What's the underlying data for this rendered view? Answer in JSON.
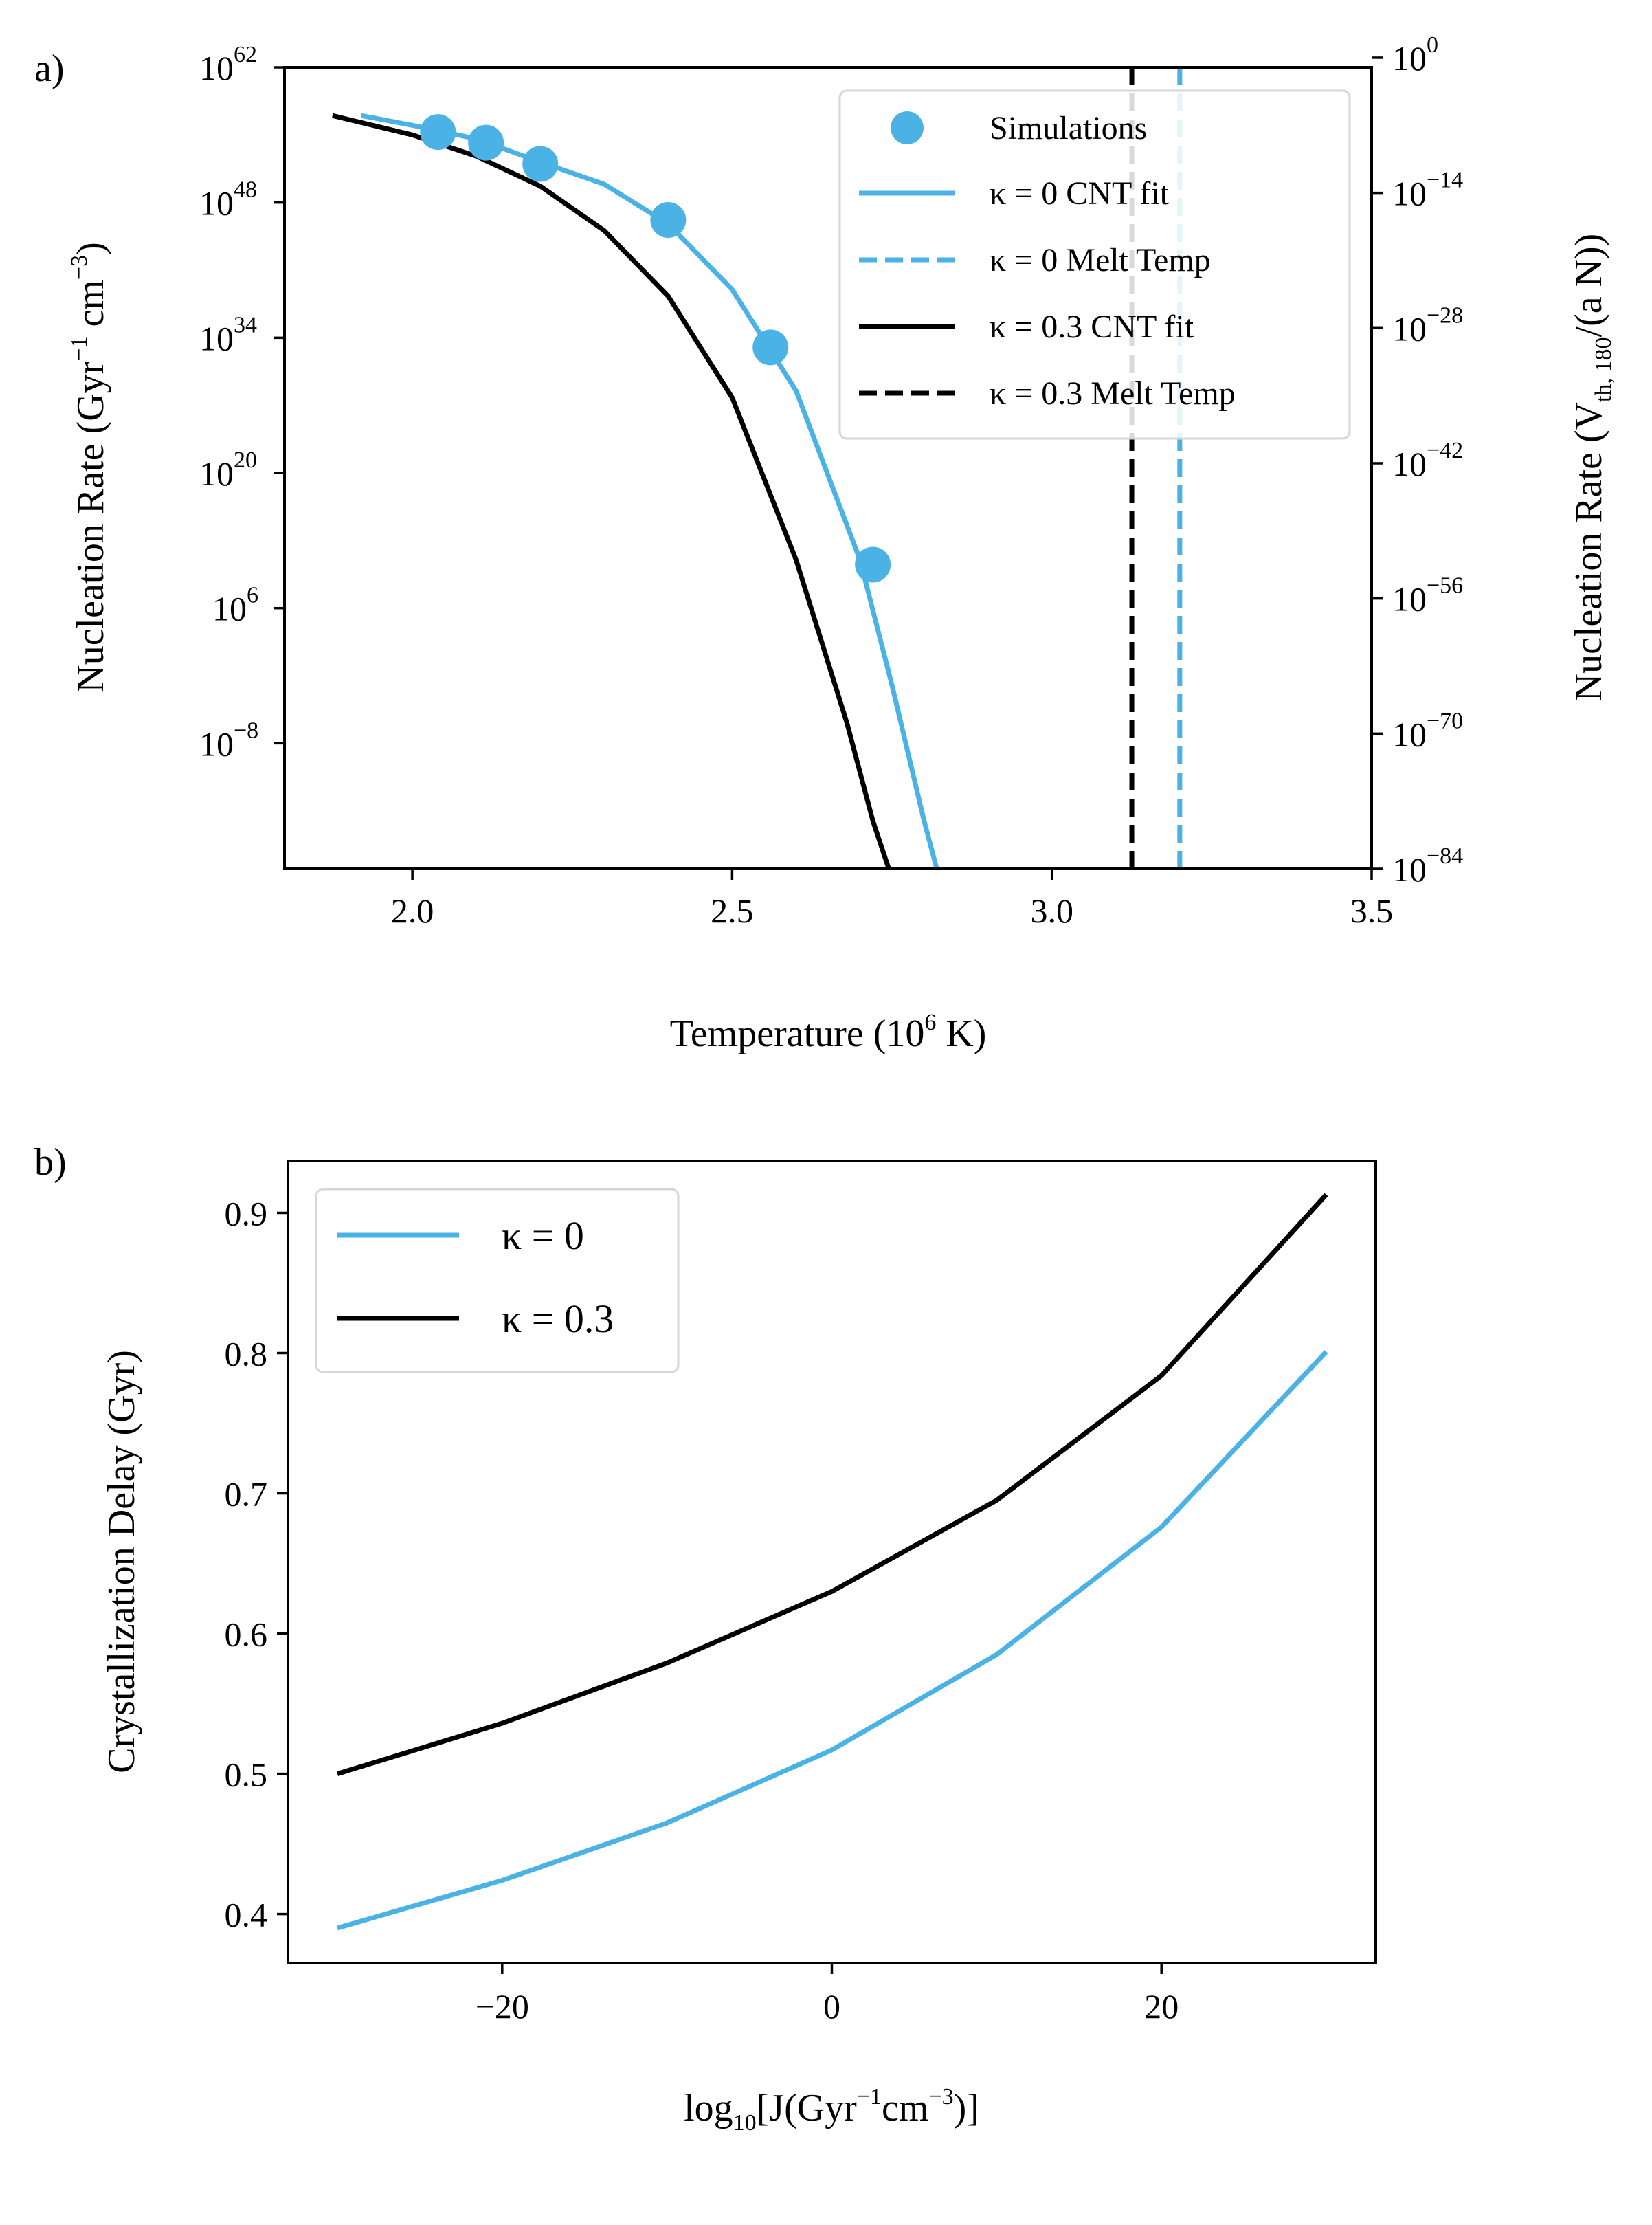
{
  "colors": {
    "kappa0": "#4bb2e5",
    "kappa03": "#000000"
  },
  "chart_data": [
    {
      "type": "line",
      "panel_label": "a)",
      "xlabel": "Temperature (10",
      "xlabel_sup": "6",
      "xlabel_unit": " K)",
      "ylabel": "Nucleation Rate (Gyr",
      "ylabel_sup1": "−1",
      "ylabel_mid": " cm",
      "ylabel_sup2": "−3",
      "ylabel_end": ")",
      "y2label": "Nucleation Rate (V",
      "y2label_sub": "th, 180",
      "y2label_end": "/(a N))",
      "xlim": [
        1.8,
        3.5
      ],
      "ylim_log10": [
        -21,
        62
      ],
      "x_ticks": [
        2.0,
        2.5,
        3.0,
        3.5
      ],
      "x_tick_labels": [
        "2.0",
        "2.5",
        "3.0",
        "3.5"
      ],
      "y_ticks_log10": [
        -8,
        6,
        20,
        34,
        48,
        62
      ],
      "y_tick_base": "10",
      "y_tick_exps": [
        "−8",
        "6",
        "20",
        "34",
        "48",
        "62"
      ],
      "y2_ticks_log10": [
        -84,
        -70,
        -56,
        -42,
        -28,
        -14,
        0
      ],
      "y2_tick_exps": [
        "−84",
        "−70",
        "−56",
        "−42",
        "−28",
        "−14",
        "0"
      ],
      "y2_offset_log10": 63,
      "legend": {
        "position": "upper-right",
        "entries": [
          {
            "label": "Simulations",
            "style": "marker",
            "color": "#4bb2e5"
          },
          {
            "label": "κ = 0 CNT fit",
            "style": "solid",
            "color": "#4bb2e5"
          },
          {
            "label": "κ = 0 Melt Temp",
            "style": "dashed",
            "color": "#4bb2e5"
          },
          {
            "label": "κ = 0.3 CNT fit",
            "style": "solid",
            "color": "#000000"
          },
          {
            "label": "κ = 0.3 Melt Temp",
            "style": "dashed",
            "color": "#000000"
          }
        ]
      },
      "series": [
        {
          "name": "Simulations",
          "kind": "scatter",
          "color": "#4bb2e5",
          "x": [
            2.04,
            2.115,
            2.2,
            2.4,
            2.56,
            2.72
          ],
          "y_log10": [
            55.3,
            54.2,
            52.0,
            46.2,
            33.0,
            10.5
          ]
        },
        {
          "name": "κ = 0 CNT fit",
          "kind": "line",
          "color": "#4bb2e5",
          "x": [
            1.92,
            2.0,
            2.1,
            2.2,
            2.3,
            2.4,
            2.5,
            2.6,
            2.7,
            2.75,
            2.8,
            2.82
          ],
          "y_log10": [
            57.0,
            56.0,
            54.6,
            52.2,
            49.9,
            45.8,
            39.0,
            28.5,
            11.0,
            -2.0,
            -16.0,
            -21.0
          ]
        },
        {
          "name": "κ = 0.3 CNT fit",
          "kind": "line",
          "color": "#000000",
          "x": [
            1.875,
            2.0,
            2.1,
            2.2,
            2.3,
            2.4,
            2.5,
            2.6,
            2.68,
            2.72,
            2.745
          ],
          "y_log10": [
            57.0,
            55.0,
            52.8,
            49.7,
            45.1,
            38.3,
            27.8,
            11.0,
            -6.0,
            -16.0,
            -21.0
          ]
        },
        {
          "name": "κ = 0 Melt Temp",
          "kind": "vline",
          "style": "dashed",
          "color": "#4bb2e5",
          "x": 3.2
        },
        {
          "name": "κ = 0.3 Melt Temp",
          "kind": "vline",
          "style": "dashed",
          "color": "#000000",
          "x": 3.125
        }
      ]
    },
    {
      "type": "line",
      "panel_label": "b)",
      "xlabel": "log",
      "xlabel_sub": "10",
      "xlabel_rest": "[J(Gyr",
      "xlabel_sup1": "−1",
      "xlabel_mid": "cm",
      "xlabel_sup2": "−3",
      "xlabel_end": ")]",
      "ylabel": "Crystallization Delay (Gyr)",
      "xlim": [
        -33,
        33
      ],
      "ylim": [
        0.365,
        0.937
      ],
      "x_ticks": [
        -20,
        0,
        20
      ],
      "x_tick_labels": [
        "−20",
        "0",
        "20"
      ],
      "y_ticks": [
        0.4,
        0.5,
        0.6,
        0.7,
        0.8,
        0.9
      ],
      "y_tick_labels": [
        "0.4",
        "0.5",
        "0.6",
        "0.7",
        "0.8",
        "0.9"
      ],
      "legend": {
        "position": "upper-left",
        "entries": [
          {
            "label": "κ = 0",
            "style": "solid",
            "color": "#4bb2e5"
          },
          {
            "label": "κ = 0.3",
            "style": "solid",
            "color": "#000000"
          }
        ]
      },
      "series": [
        {
          "name": "κ = 0",
          "color": "#4bb2e5",
          "x": [
            -30,
            -20,
            -10,
            0,
            10,
            20,
            30
          ],
          "y": [
            0.39,
            0.424,
            0.465,
            0.517,
            0.585,
            0.676,
            0.801
          ]
        },
        {
          "name": "κ = 0.3",
          "color": "#000000",
          "x": [
            -30,
            -20,
            -10,
            0,
            10,
            20,
            30
          ],
          "y": [
            0.5,
            0.536,
            0.579,
            0.63,
            0.695,
            0.784,
            0.913
          ]
        }
      ]
    }
  ]
}
